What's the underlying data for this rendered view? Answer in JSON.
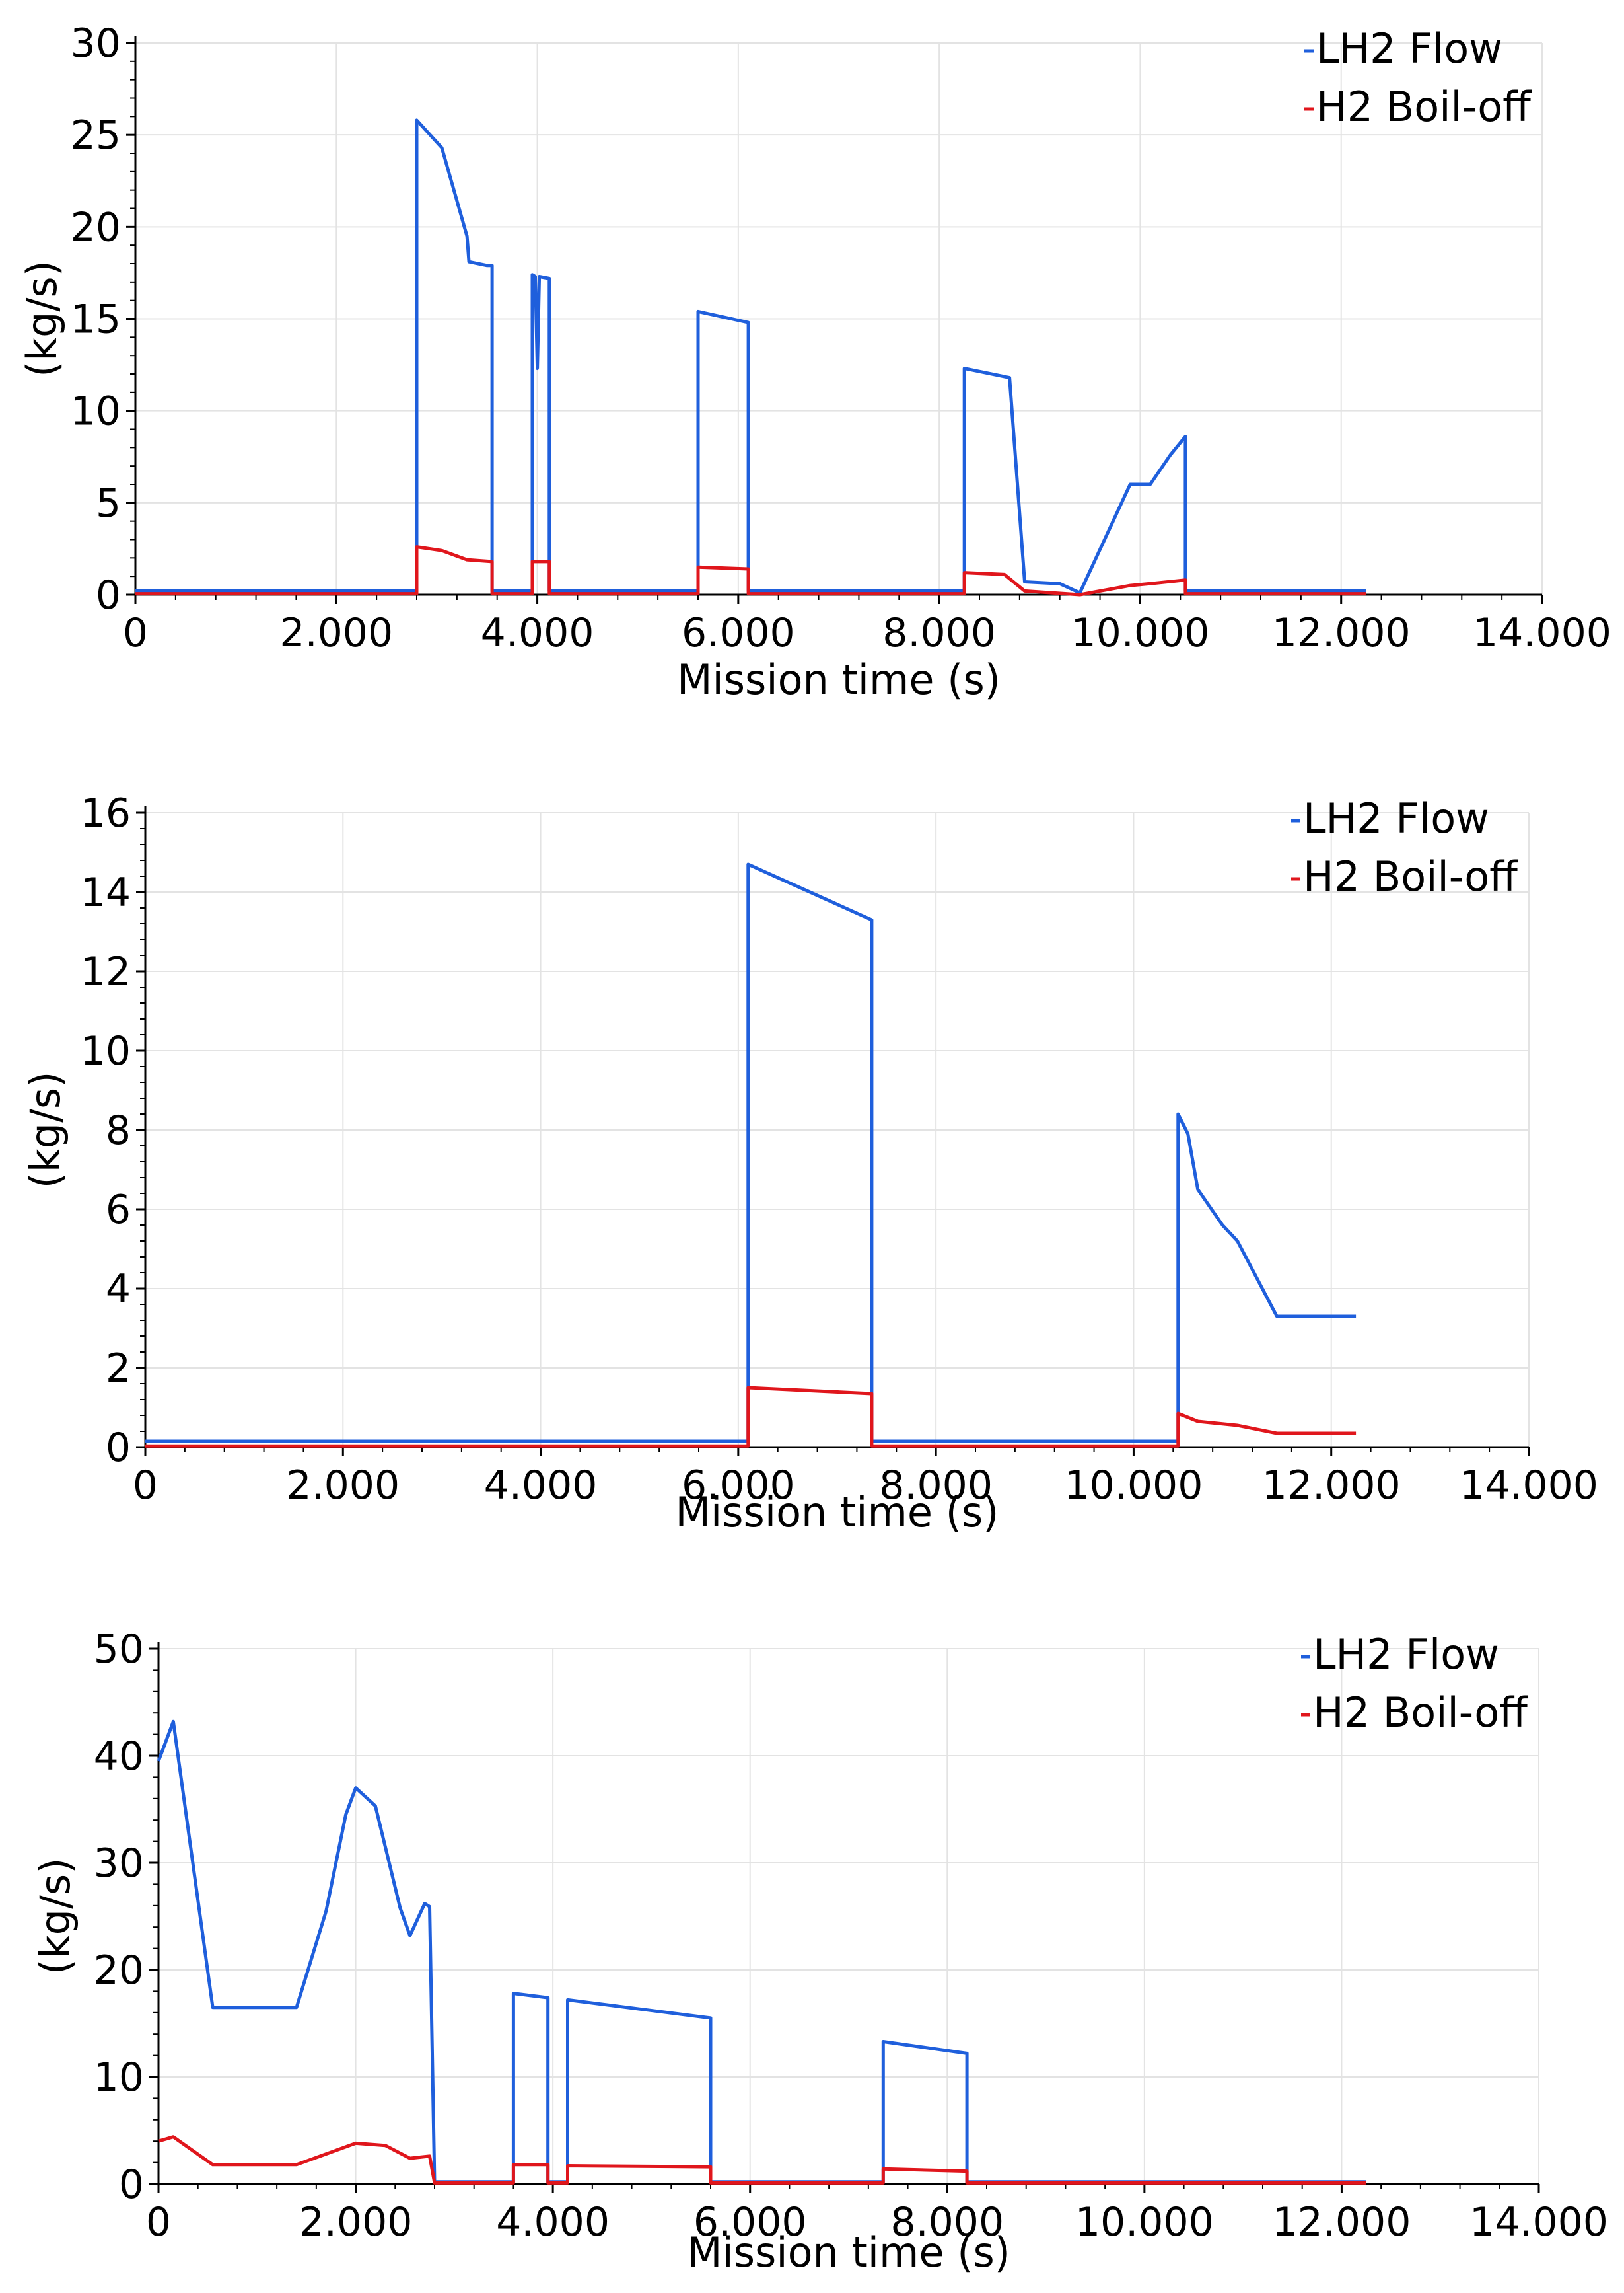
{
  "chart_data": [
    {
      "type": "line",
      "title": "",
      "xlabel": "Mission time (s)",
      "ylabel": "(kg/s)",
      "xlim": [
        0,
        14000
      ],
      "ylim": [
        0,
        30
      ],
      "xticks": [
        0,
        2000,
        4000,
        6000,
        8000,
        10000,
        12000,
        14000
      ],
      "xtick_labels": [
        "0",
        "2.000",
        "4.000",
        "6.000",
        "8.000",
        "10.000",
        "12.000",
        "14.000"
      ],
      "yticks": [
        0,
        5,
        10,
        15,
        20,
        25,
        30
      ],
      "ytick_labels": [
        "0",
        "5",
        "10",
        "15",
        "20",
        "25",
        "30"
      ],
      "grid": true,
      "legend_position": "top-right",
      "series": [
        {
          "name": "LH2 Flow",
          "color": "#1f5fdc",
          "points": [
            [
              0,
              0.2
            ],
            [
              2800,
              0.2
            ],
            [
              2800,
              25.8
            ],
            [
              3050,
              24.3
            ],
            [
              3300,
              19.5
            ],
            [
              3320,
              18.1
            ],
            [
              3500,
              17.9
            ],
            [
              3550,
              17.9
            ],
            [
              3550,
              0.2
            ],
            [
              3950,
              0.2
            ],
            [
              3950,
              17.4
            ],
            [
              3980,
              17.3
            ],
            [
              4000,
              12.3
            ],
            [
              4020,
              17.3
            ],
            [
              4120,
              17.2
            ],
            [
              4120,
              0.2
            ],
            [
              5600,
              0.2
            ],
            [
              5600,
              15.4
            ],
            [
              6100,
              14.8
            ],
            [
              6100,
              0.2
            ],
            [
              8250,
              0.2
            ],
            [
              8250,
              12.3
            ],
            [
              8700,
              11.8
            ],
            [
              8850,
              0.7
            ],
            [
              9200,
              0.6
            ],
            [
              9400,
              0.1
            ],
            [
              9900,
              6.0
            ],
            [
              10100,
              6.0
            ],
            [
              10300,
              7.6
            ],
            [
              10450,
              8.6
            ],
            [
              10450,
              0.2
            ],
            [
              12250,
              0.2
            ]
          ]
        },
        {
          "name": "H2 Boil-off",
          "color": "#e0161c",
          "points": [
            [
              0,
              0.05
            ],
            [
              2800,
              0.05
            ],
            [
              2800,
              2.6
            ],
            [
              3050,
              2.4
            ],
            [
              3300,
              1.9
            ],
            [
              3550,
              1.8
            ],
            [
              3550,
              0.05
            ],
            [
              3950,
              0.05
            ],
            [
              3950,
              1.8
            ],
            [
              4120,
              1.8
            ],
            [
              4120,
              0.05
            ],
            [
              5600,
              0.05
            ],
            [
              5600,
              1.5
            ],
            [
              6100,
              1.4
            ],
            [
              6100,
              0.05
            ],
            [
              8250,
              0.05
            ],
            [
              8250,
              1.2
            ],
            [
              8650,
              1.1
            ],
            [
              8850,
              0.2
            ],
            [
              9400,
              0.0
            ],
            [
              9900,
              0.5
            ],
            [
              10100,
              0.6
            ],
            [
              10450,
              0.8
            ],
            [
              10450,
              0.05
            ],
            [
              12250,
              0.05
            ]
          ]
        }
      ]
    },
    {
      "type": "line",
      "title": "",
      "xlabel": "Mission time (s)",
      "ylabel": "(kg/s)",
      "xlim": [
        0,
        14000
      ],
      "ylim": [
        0,
        16
      ],
      "xticks": [
        0,
        2000,
        4000,
        6000,
        8000,
        10000,
        12000,
        14000
      ],
      "xtick_labels": [
        "0",
        "2.000",
        "4.000",
        "6.000",
        "8.000",
        "10.000",
        "12.000",
        "14.000"
      ],
      "yticks": [
        0,
        2,
        4,
        6,
        8,
        10,
        12,
        14,
        16
      ],
      "ytick_labels": [
        "0",
        "2",
        "4",
        "6",
        "8",
        "10",
        "12",
        "14",
        "16"
      ],
      "grid": true,
      "legend_position": "top-right",
      "series": [
        {
          "name": "LH2 Flow",
          "color": "#1f5fdc",
          "points": [
            [
              0,
              0.15
            ],
            [
              6100,
              0.15
            ],
            [
              6100,
              14.7
            ],
            [
              7350,
              13.3
            ],
            [
              7350,
              0.15
            ],
            [
              10450,
              0.15
            ],
            [
              10450,
              8.4
            ],
            [
              10550,
              7.9
            ],
            [
              10650,
              6.5
            ],
            [
              10900,
              5.6
            ],
            [
              11050,
              5.2
            ],
            [
              11450,
              3.3
            ],
            [
              12250,
              3.3
            ]
          ]
        },
        {
          "name": "H2 Boil-off",
          "color": "#e0161c",
          "points": [
            [
              0,
              0.03
            ],
            [
              6100,
              0.03
            ],
            [
              6100,
              1.5
            ],
            [
              7350,
              1.35
            ],
            [
              7350,
              0.03
            ],
            [
              10450,
              0.03
            ],
            [
              10450,
              0.85
            ],
            [
              10650,
              0.65
            ],
            [
              11050,
              0.55
            ],
            [
              11450,
              0.35
            ],
            [
              12250,
              0.35
            ]
          ]
        }
      ]
    },
    {
      "type": "line",
      "title": "",
      "xlabel": "Mission time (s)",
      "ylabel": "(kg/s)",
      "xlim": [
        0,
        14000
      ],
      "ylim": [
        0,
        50
      ],
      "xticks": [
        0,
        2000,
        4000,
        6000,
        8000,
        10000,
        12000,
        14000
      ],
      "xtick_labels": [
        "0",
        "2.000",
        "4.000",
        "6.000",
        "8.000",
        "10.000",
        "12.000",
        "14.000"
      ],
      "yticks": [
        0,
        10,
        20,
        30,
        40,
        50
      ],
      "ytick_labels": [
        "0",
        "10",
        "20",
        "30",
        "40",
        "50"
      ],
      "grid": true,
      "legend_position": "top-right",
      "series": [
        {
          "name": "LH2 Flow",
          "color": "#1f5fdc",
          "points": [
            [
              0,
              39.5
            ],
            [
              150,
              43.2
            ],
            [
              550,
              16.5
            ],
            [
              1400,
              16.5
            ],
            [
              1700,
              25.5
            ],
            [
              1900,
              34.5
            ],
            [
              2000,
              37.0
            ],
            [
              2200,
              35.3
            ],
            [
              2450,
              25.8
            ],
            [
              2550,
              23.2
            ],
            [
              2700,
              26.2
            ],
            [
              2750,
              25.9
            ],
            [
              2800,
              0.2
            ],
            [
              3600,
              0.2
            ],
            [
              3600,
              17.8
            ],
            [
              3950,
              17.4
            ],
            [
              3950,
              0.2
            ],
            [
              4150,
              0.2
            ],
            [
              4150,
              17.2
            ],
            [
              5600,
              15.5
            ],
            [
              5600,
              0.2
            ],
            [
              7350,
              0.2
            ],
            [
              7350,
              13.3
            ],
            [
              8200,
              12.2
            ],
            [
              8200,
              0.2
            ],
            [
              12250,
              0.2
            ]
          ]
        },
        {
          "name": "H2 Boil-off",
          "color": "#e0161c",
          "points": [
            [
              0,
              4.0
            ],
            [
              150,
              4.4
            ],
            [
              550,
              1.8
            ],
            [
              1400,
              1.8
            ],
            [
              1700,
              2.8
            ],
            [
              2000,
              3.8
            ],
            [
              2300,
              3.6
            ],
            [
              2550,
              2.4
            ],
            [
              2750,
              2.6
            ],
            [
              2800,
              0.1
            ],
            [
              3600,
              0.1
            ],
            [
              3600,
              1.8
            ],
            [
              3950,
              1.8
            ],
            [
              3950,
              0.1
            ],
            [
              4150,
              0.1
            ],
            [
              4150,
              1.7
            ],
            [
              5600,
              1.6
            ],
            [
              5600,
              0.1
            ],
            [
              7350,
              0.1
            ],
            [
              7350,
              1.4
            ],
            [
              8200,
              1.2
            ],
            [
              8200,
              0.1
            ],
            [
              12250,
              0.1
            ]
          ]
        }
      ]
    }
  ]
}
